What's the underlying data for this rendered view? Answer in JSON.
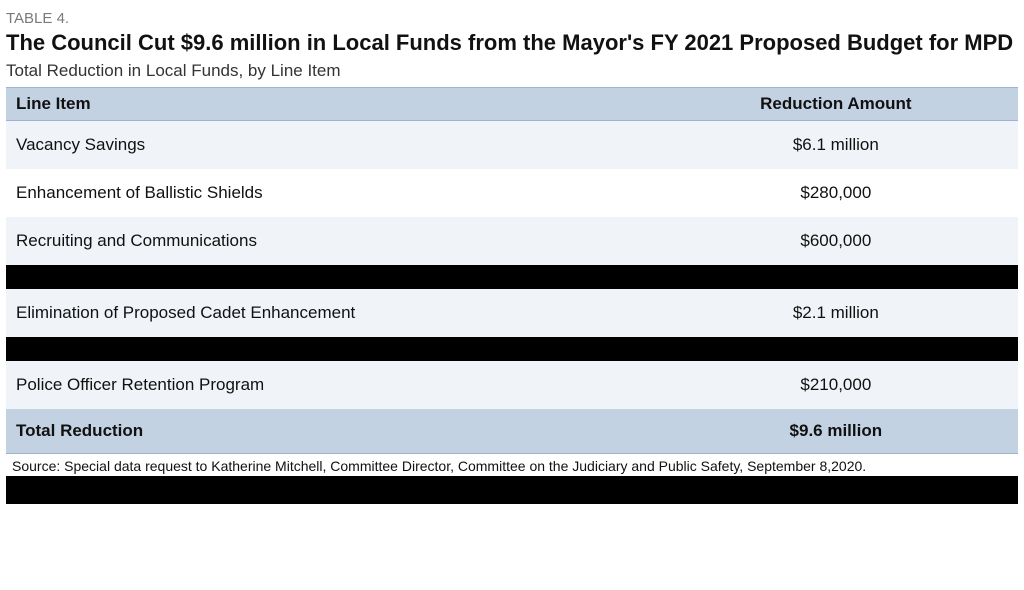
{
  "header": {
    "label": "TABLE 4.",
    "title": "The Council Cut $9.6 million in Local Funds from the Mayor's FY 2021 Proposed Budget for MPD",
    "subtitle": "Total Reduction in Local Funds, by Line Item"
  },
  "table": {
    "columns": {
      "line_item": "Line Item",
      "amount": "Reduction Amount"
    },
    "rows": [
      {
        "line_item": "Vacancy Savings",
        "amount": "$6.1 million",
        "redacted": false,
        "stripe": "odd"
      },
      {
        "line_item": "Enhancement of Ballistic Shields",
        "amount": "$280,000",
        "redacted": false,
        "stripe": "even"
      },
      {
        "line_item": "Recruiting and Communications",
        "amount": "$600,000",
        "redacted": false,
        "stripe": "odd"
      },
      {
        "line_item": "",
        "amount": "",
        "redacted": true,
        "stripe": "even"
      },
      {
        "line_item": "Elimination of Proposed Cadet Enhancement",
        "amount": "$2.1 million",
        "redacted": false,
        "stripe": "odd"
      },
      {
        "line_item": "",
        "amount": "",
        "redacted": true,
        "stripe": "even"
      },
      {
        "line_item": "Police Officer Retention Program",
        "amount": "$210,000",
        "redacted": false,
        "stripe": "odd"
      }
    ],
    "total": {
      "label": "Total Reduction",
      "amount": "$9.6 million"
    }
  },
  "source": "Source: Special data request to Katherine Mitchell, Committee Director, Committee on the Judiciary and Public Safety, September 8,2020.",
  "colors": {
    "header_bg": "#c3d2e2",
    "stripe_odd": "#f0f3f8",
    "stripe_even": "#ffffff",
    "redacted": "#000000",
    "label_text": "#7a7a7a",
    "body_text": "#111111"
  }
}
